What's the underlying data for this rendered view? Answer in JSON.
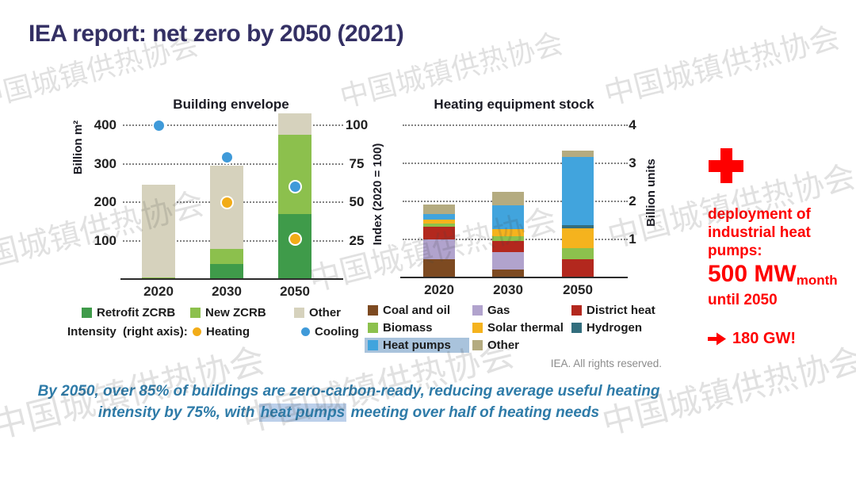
{
  "title": "IEA report: net zero by 2050 (2021)",
  "watermark_text": "中国城镇供热协会",
  "attribution": "IEA. All rights reserved.",
  "chart_data": [
    {
      "type": "bar",
      "title": "Building envelope",
      "categories": [
        "2020",
        "2030",
        "2050"
      ],
      "stacked": true,
      "grid": "dotted",
      "ylabel": "Billion m²",
      "yticks": [
        100,
        200,
        300,
        400
      ],
      "ylim": [
        0,
        440
      ],
      "y2label": "Index (2020 = 100)",
      "y2ticks": [
        25,
        50,
        75,
        100
      ],
      "y2lim": [
        0,
        110
      ],
      "series": [
        {
          "name": "Retrofit ZCRB",
          "color": "#3f9b4a",
          "values": [
            2,
            39,
            170
          ]
        },
        {
          "name": "New ZCRB",
          "color": "#8cc04d",
          "values": [
            3,
            39,
            205
          ]
        },
        {
          "name": "Other",
          "color": "#d6d2bd",
          "values": [
            240,
            217,
            55
          ]
        }
      ],
      "point_series": [
        {
          "name": "Heating",
          "axis": "right",
          "color": "#f2ac18",
          "index_values": [
            null,
            50,
            26
          ]
        },
        {
          "name": "Cooling",
          "axis": "right",
          "color": "#3f9ad9",
          "index_values": [
            100,
            79,
            60
          ]
        }
      ]
    },
    {
      "type": "bar",
      "title": "Heating equipment stock",
      "categories": [
        "2020",
        "2030",
        "2050"
      ],
      "stacked": true,
      "grid": "dotted",
      "ylabel": "Billion units",
      "yticks": [
        1,
        2,
        3,
        4
      ],
      "ylim": [
        0,
        4.2
      ],
      "series": [
        {
          "name": "Coal and oil",
          "color": "#7d4a21",
          "values": [
            0.47,
            0.21,
            0
          ]
        },
        {
          "name": "Gas",
          "color": "#b1a3cd",
          "values": [
            0.53,
            0.46,
            0
          ]
        },
        {
          "name": "District heat",
          "color": "#b3281e",
          "values": [
            0.33,
            0.28,
            0.47
          ]
        },
        {
          "name": "Biomass",
          "color": "#8cc14d",
          "values": [
            0.09,
            0.14,
            0.31
          ]
        },
        {
          "name": "Solar thermal",
          "color": "#f5b31e",
          "values": [
            0.1,
            0.19,
            0.52
          ]
        },
        {
          "name": "Hydrogen",
          "color": "#336e7d",
          "values": [
            0,
            0,
            0.08
          ]
        },
        {
          "name": "Heat pumps",
          "color": "#41a4dd",
          "values": [
            0.14,
            0.61,
            1.8
          ]
        },
        {
          "name": "Other",
          "color": "#b4ab80",
          "values": [
            0.27,
            0.36,
            0.15
          ]
        }
      ]
    }
  ],
  "legend_left": {
    "row1": [
      {
        "label": "Retrofit ZCRB",
        "color": "#3f9b4a"
      },
      {
        "label": "New ZCRB",
        "color": "#8cc04d"
      },
      {
        "label": "Other",
        "color": "#d6d2bd"
      }
    ],
    "row2_prefix": "Intensity  (right axis):",
    "row2": [
      {
        "label": "Heating",
        "color": "#f2ac18"
      },
      {
        "label": "Cooling",
        "color": "#3f9ad9"
      }
    ]
  },
  "legend_right": {
    "highlight_color": "#a9c3dc",
    "items": [
      {
        "label": "Coal and oil",
        "color": "#7d4a21"
      },
      {
        "label": "Gas",
        "color": "#b1a3cd"
      },
      {
        "label": "District heat",
        "color": "#b3281e"
      },
      {
        "label": "Biomass",
        "color": "#8cc14d"
      },
      {
        "label": "Solar thermal",
        "color": "#f5b31e"
      },
      {
        "label": "Hydrogen",
        "color": "#336e7d"
      },
      {
        "label": "Heat pumps",
        "color": "#41a4dd",
        "highlight": true
      },
      {
        "label": "Other",
        "color": "#b4ab80"
      }
    ]
  },
  "side_panel": {
    "plus_icon": "plus",
    "intro_lines": [
      "deployment of",
      "industrial heat",
      "pumps:"
    ],
    "value": "500 MW",
    "value_sub": "month",
    "until": "until 2050",
    "arrow_icon": "➔",
    "result": "180 GW!"
  },
  "caption": {
    "line1": "By 2050, over 85% of buildings are zero-carbon-ready, reducing average useful heating",
    "line2_pre": "intensity by 75%, with ",
    "line2_highlight": "heat pumps",
    "line2_post": " meeting over half of heating needs"
  },
  "colors": {
    "title_navy": "#343064",
    "accent_red": "#fe0000",
    "caption_teal": "#2e7ba8",
    "caption_highlight": "#bcd0ea"
  }
}
